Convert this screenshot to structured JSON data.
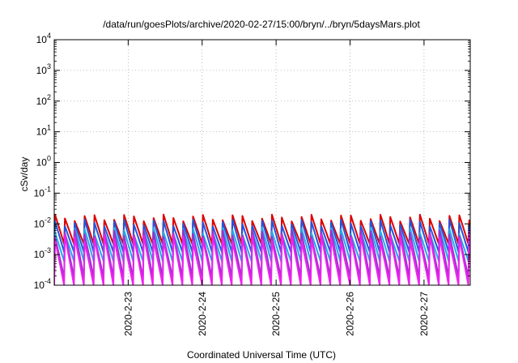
{
  "chart_data": {
    "type": "line",
    "title": "/data/run/goesPlots/archive/2020-02-27/15:00/bryn/../bryn/5daysMars.plot",
    "xlabel": "Coordinated Universal Time (UTC)",
    "ylabel": "cSv/day",
    "yscale": "log",
    "ylim": [
      0.0001,
      10000
    ],
    "xlim": [
      "2020-02-22T00:00",
      "2020-02-27T15:00"
    ],
    "grid": true,
    "legend": "none",
    "y_ticks": [
      {
        "base": "10",
        "exp": "-4",
        "value": 0.0001
      },
      {
        "base": "10",
        "exp": "-3",
        "value": 0.001
      },
      {
        "base": "10",
        "exp": "-2",
        "value": 0.01
      },
      {
        "base": "10",
        "exp": "-1",
        "value": 0.1
      },
      {
        "base": "10",
        "exp": "0",
        "value": 1
      },
      {
        "base": "10",
        "exp": "1",
        "value": 10
      },
      {
        "base": "10",
        "exp": "2",
        "value": 100
      },
      {
        "base": "10",
        "exp": "3",
        "value": 1000
      },
      {
        "base": "10",
        "exp": "4",
        "value": 10000
      }
    ],
    "x_ticks": [
      {
        "label": "2020-2-23",
        "value": "2020-02-23T00:00"
      },
      {
        "label": "2020-2-24",
        "value": "2020-02-24T00:00"
      },
      {
        "label": "2020-2-25",
        "value": "2020-02-25T00:00"
      },
      {
        "label": "2020-2-26",
        "value": "2020-02-26T00:00"
      },
      {
        "label": "2020-2-27",
        "value": "2020-02-27T00:00"
      }
    ],
    "series": [
      {
        "color": "#dd0000",
        "peak": 0.016,
        "trough": 0.0022
      },
      {
        "color": "#2255dd",
        "peak": 0.011,
        "trough": 0.0012
      },
      {
        "color": "#22aaee",
        "peak": 0.006,
        "trough": 0.0006
      },
      {
        "color": "#9933cc",
        "peak": 0.005,
        "trough": 0.00018
      },
      {
        "color": "#ee22ee",
        "peak": 0.0035,
        "trough": 0.0001
      }
    ],
    "cycle_hours": 3.2
  }
}
